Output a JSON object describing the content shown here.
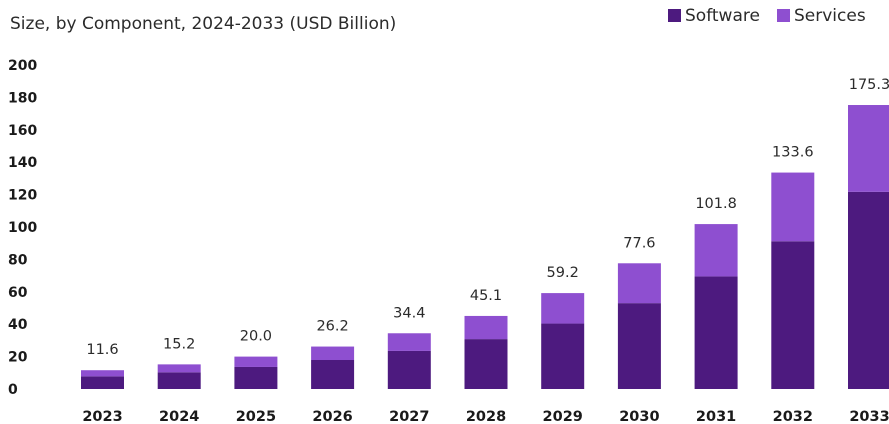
{
  "chart_data": {
    "type": "bar",
    "stacked": true,
    "subtitle": "Size, by Component, 2024-2033 (USD Billion)",
    "categories": [
      "2023",
      "2024",
      "2025",
      "2026",
      "2027",
      "2028",
      "2029",
      "2030",
      "2031",
      "2032",
      "2033"
    ],
    "series": [
      {
        "name": "Software",
        "color": "#4d1a7f",
        "values": [
          7.8,
          10.3,
          13.6,
          17.9,
          23.5,
          30.8,
          40.4,
          53.0,
          69.5,
          91.2,
          121.7
        ]
      },
      {
        "name": "Services",
        "color": "#8e4fd0",
        "values": [
          3.8,
          4.9,
          6.4,
          8.3,
          10.9,
          14.3,
          18.8,
          24.6,
          32.3,
          42.4,
          53.6
        ]
      }
    ],
    "totals": [
      "11.6",
      "15.2",
      "20.0",
      "26.2",
      "34.4",
      "45.1",
      "59.2",
      "77.6",
      "101.8",
      "133.6",
      "175.3"
    ],
    "ylim": [
      0,
      200
    ],
    "yticks": [
      "0",
      "20",
      "40",
      "60",
      "80",
      "100",
      "120",
      "140",
      "160",
      "180",
      "200"
    ],
    "grid": false,
    "legend_position": "top-right"
  }
}
